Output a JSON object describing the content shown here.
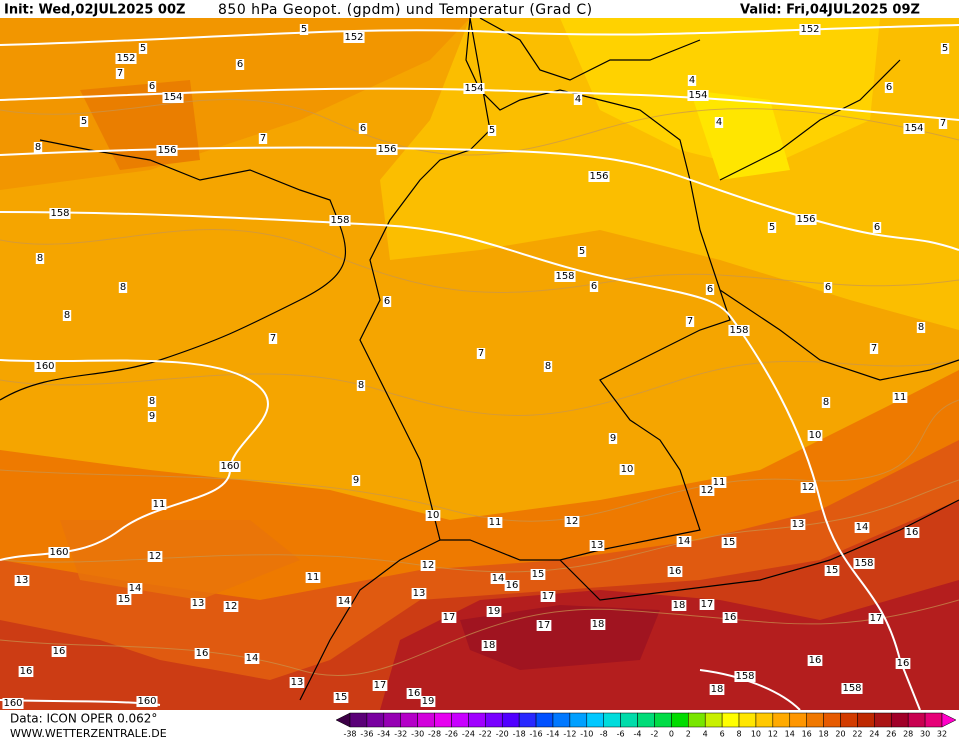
{
  "header": {
    "init": "Init: Wed,02JUL2025 00Z",
    "title": "850 hPa Geopot. (gpdm) und Temperatur (Grad C)",
    "valid": "Valid: Fri,04JUL2025 09Z"
  },
  "footer": {
    "data": "Data: ICON OPER 0.062°",
    "site": "WWW.WETTERZENTRALE.DE"
  },
  "colorbar": {
    "labels": [
      -38,
      -36,
      -34,
      -32,
      -30,
      -28,
      -26,
      -24,
      -22,
      -20,
      -18,
      -16,
      -14,
      -12,
      -10,
      -8,
      -6,
      -4,
      -2,
      0,
      2,
      4,
      6,
      8,
      10,
      12,
      14,
      16,
      18,
      20,
      22,
      24,
      26,
      28,
      30,
      32
    ],
    "colors": [
      "#3c0046",
      "#5a0078",
      "#7800a0",
      "#9600b4",
      "#b400c8",
      "#d200dc",
      "#e600f0",
      "#c800ff",
      "#a000ff",
      "#7800ff",
      "#5000ff",
      "#2828ff",
      "#0050ff",
      "#0078ff",
      "#00a0ff",
      "#00c8ff",
      "#00dcdc",
      "#00dcaa",
      "#00dc78",
      "#00dc46",
      "#00dc00",
      "#78e600",
      "#c8f000",
      "#ffff00",
      "#ffe600",
      "#ffc800",
      "#ffaa00",
      "#ff9600",
      "#f07800",
      "#e65a00",
      "#d23c00",
      "#be2800",
      "#aa1414",
      "#a00028",
      "#c80050",
      "#e60078",
      "#ff00c8"
    ]
  },
  "contour_labels": {
    "geopotential": [
      152,
      152,
      152,
      154,
      154,
      154,
      154,
      156,
      156,
      156,
      156,
      158,
      158,
      158,
      158,
      158,
      158,
      158,
      160,
      160,
      160,
      160,
      160
    ],
    "temperature": [
      5,
      5,
      5,
      5,
      5,
      5,
      5,
      7,
      6,
      6,
      4,
      4,
      4,
      6,
      7,
      8,
      7,
      6,
      8,
      8,
      8,
      6,
      6,
      6,
      6,
      7,
      8,
      7,
      6,
      7,
      7,
      8,
      8,
      8,
      9,
      8,
      11,
      9,
      10,
      10,
      9,
      10,
      11,
      11,
      12,
      12,
      11,
      12,
      13,
      14,
      16,
      14,
      15,
      13,
      12,
      12,
      11,
      13,
      14,
      15,
      13,
      12,
      14,
      13,
      15,
      14,
      16,
      16,
      15,
      17,
      18,
      17,
      19,
      17,
      17,
      18,
      16,
      17,
      18,
      16,
      16,
      14,
      16,
      16,
      16,
      13,
      17,
      16,
      19,
      15,
      18
    ]
  }
}
